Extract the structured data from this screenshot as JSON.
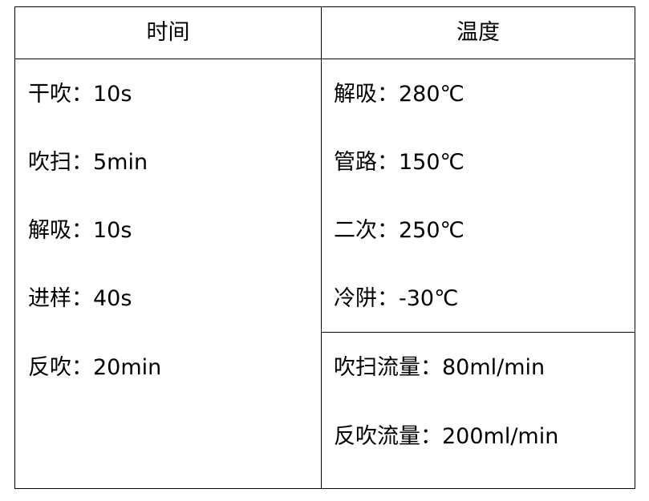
{
  "headers": [
    "时间",
    "温度"
  ],
  "time_items": [
    "干吹：10s",
    "吹扫：5min",
    "解吸：10s",
    "进样：40s",
    "反吹：20min"
  ],
  "temp_items": [
    "解吸：280℃",
    "管路：150℃",
    "二次：250℃",
    "冷阱：-30℃"
  ],
  "flow_items": [
    "吹扫流量：80ml/min",
    "反吹流量：200ml/min"
  ]
}
